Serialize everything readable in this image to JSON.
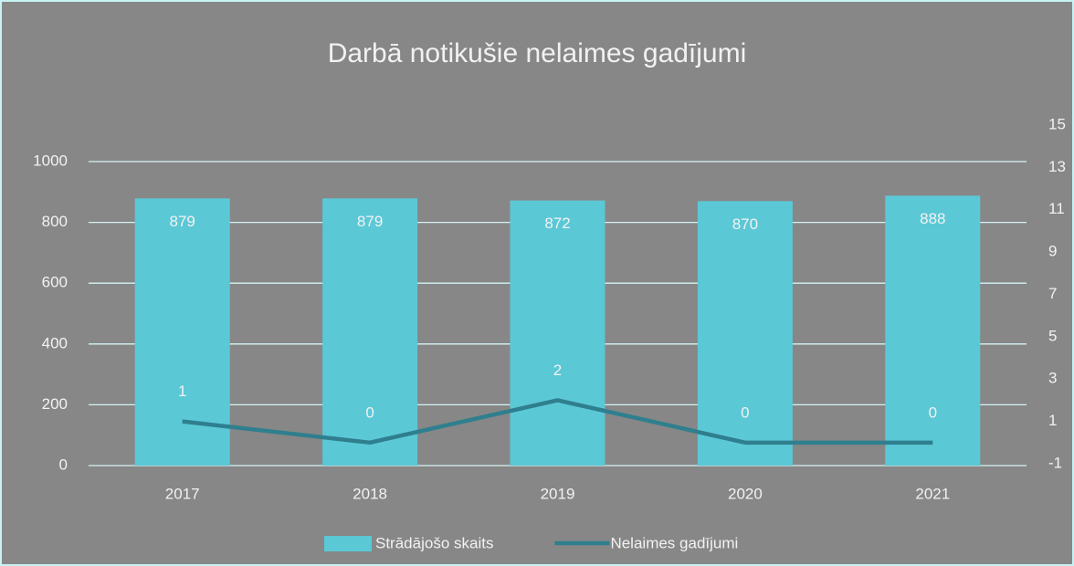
{
  "chart_data": {
    "type": "bar-line",
    "title": "Darbā notikušie nelaimes gadījumi",
    "categories": [
      "2017",
      "2018",
      "2019",
      "2020",
      "2021"
    ],
    "series": [
      {
        "name": "Strādājošo skaits",
        "color": "#5bc8d6",
        "type": "bar",
        "values": [
          879,
          879,
          872,
          870,
          888
        ]
      },
      {
        "name": "Nelaimes gadījumi",
        "color": "#2f7f8e",
        "type": "line",
        "axis": "y2",
        "values": [
          1,
          0,
          2,
          0,
          0
        ]
      }
    ],
    "ylim": [
      0,
      1000
    ],
    "yticks": [
      0,
      200,
      400,
      600,
      800,
      1000
    ],
    "y2lim": [
      -1,
      15
    ],
    "y2ticks": [
      -1,
      1,
      3,
      5,
      7,
      9,
      11,
      13,
      15
    ],
    "grid": true,
    "legend": "bottom"
  }
}
